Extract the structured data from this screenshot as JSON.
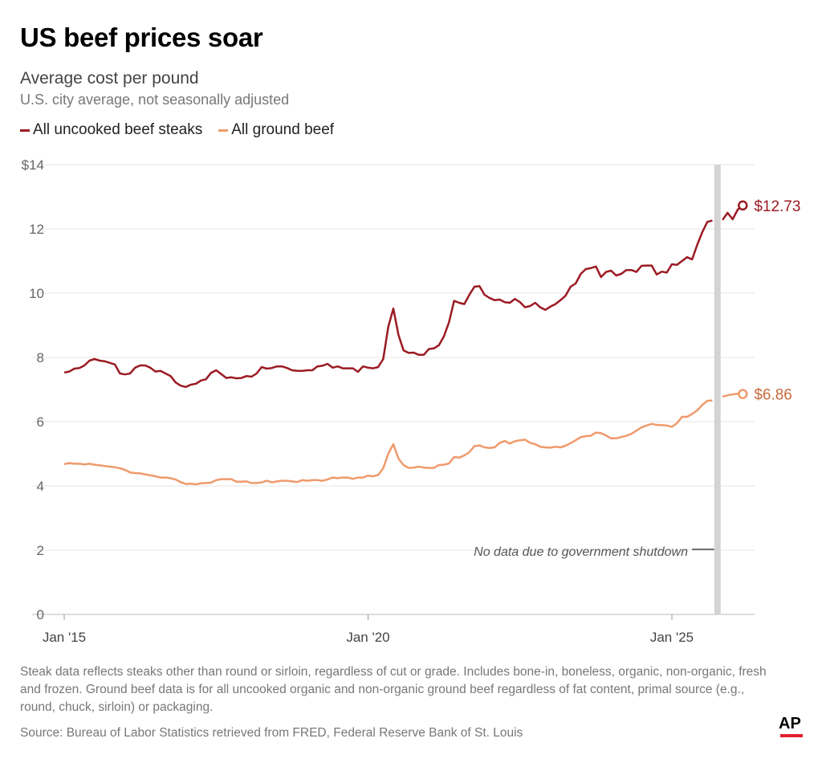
{
  "title": "US beef prices soar",
  "subtitle": "Average cost per pound",
  "note": "U.S. city average, not seasonally adjusted",
  "footnote": "Steak data reflects steaks other than round or sirloin, regardless of cut or grade. Includes bone-in, boneless, organic, non-organic, fresh and frozen. Ground beef data is for all uncooked organic and non-organic ground beef regardless of fat content, primal source (e.g., round, chuck, sirloin) or packaging.",
  "source": "Source: Bureau of Labor Statistics retrieved from FRED, Federal Reserve Bank of St. Louis",
  "logo": "AP",
  "chart_data": {
    "type": "line",
    "title": "US beef prices soar",
    "ylabel": "",
    "xlabel": "",
    "x_start": "2015-01",
    "x_end": "2026-03",
    "frequency": "monthly",
    "ylim": [
      0,
      14
    ],
    "y_ticks": [
      "$14",
      "12",
      "10",
      "8",
      "6",
      "4",
      "2",
      "0"
    ],
    "x_ticks": [
      "Jan '15",
      "Jan '20",
      "Jan '25"
    ],
    "grid": true,
    "legend_position": "top-left",
    "annotation": {
      "text": "No data due to government shutdown",
      "month": "2025-10"
    },
    "series": [
      {
        "name": "All uncooked beef steaks",
        "color": "#9b1b23",
        "end_label": "$12.73",
        "values": [
          7.53,
          7.56,
          7.65,
          7.67,
          7.75,
          7.9,
          7.95,
          7.9,
          7.88,
          7.83,
          7.78,
          7.5,
          7.47,
          7.5,
          7.68,
          7.75,
          7.75,
          7.68,
          7.56,
          7.58,
          7.5,
          7.42,
          7.22,
          7.12,
          7.08,
          7.15,
          7.18,
          7.28,
          7.32,
          7.52,
          7.6,
          7.48,
          7.36,
          7.38,
          7.35,
          7.36,
          7.42,
          7.4,
          7.5,
          7.7,
          7.65,
          7.67,
          7.72,
          7.72,
          7.67,
          7.6,
          7.58,
          7.58,
          7.6,
          7.6,
          7.72,
          7.74,
          7.8,
          7.68,
          7.72,
          7.66,
          7.66,
          7.66,
          7.55,
          7.72,
          7.68,
          7.66,
          7.7,
          7.95,
          8.95,
          9.52,
          8.7,
          8.22,
          8.14,
          8.15,
          8.08,
          8.08,
          8.26,
          8.28,
          8.38,
          8.66,
          9.1,
          9.76,
          9.7,
          9.66,
          9.95,
          10.2,
          10.22,
          9.95,
          9.85,
          9.78,
          9.8,
          9.72,
          9.7,
          9.82,
          9.72,
          9.56,
          9.6,
          9.7,
          9.56,
          9.48,
          9.58,
          9.66,
          9.78,
          9.92,
          10.2,
          10.3,
          10.6,
          10.75,
          10.78,
          10.83,
          10.5,
          10.66,
          10.7,
          10.55,
          10.6,
          10.72,
          10.72,
          10.66,
          10.85,
          10.86,
          10.86,
          10.58,
          10.67,
          10.64,
          10.9,
          10.88,
          11.0,
          11.12,
          11.05,
          11.5,
          11.9,
          12.22,
          12.26,
          null,
          12.28,
          12.5,
          12.3,
          12.6,
          12.73
        ]
      },
      {
        "name": "All ground beef",
        "color": "#ef9a6c",
        "end_label": "$6.86",
        "values": [
          4.68,
          4.71,
          4.69,
          4.69,
          4.67,
          4.69,
          4.66,
          4.64,
          4.62,
          4.6,
          4.58,
          4.55,
          4.5,
          4.42,
          4.4,
          4.39,
          4.36,
          4.33,
          4.3,
          4.26,
          4.26,
          4.24,
          4.2,
          4.12,
          4.06,
          4.07,
          4.05,
          4.08,
          4.09,
          4.1,
          4.18,
          4.21,
          4.21,
          4.21,
          4.13,
          4.13,
          4.14,
          4.09,
          4.09,
          4.11,
          4.16,
          4.11,
          4.14,
          4.16,
          4.16,
          4.14,
          4.12,
          4.18,
          4.16,
          4.18,
          4.18,
          4.16,
          4.2,
          4.26,
          4.24,
          4.26,
          4.26,
          4.22,
          4.26,
          4.26,
          4.32,
          4.3,
          4.34,
          4.55,
          5.0,
          5.3,
          4.85,
          4.65,
          4.56,
          4.57,
          4.6,
          4.57,
          4.56,
          4.56,
          4.65,
          4.66,
          4.7,
          4.9,
          4.88,
          4.95,
          5.05,
          5.24,
          5.26,
          5.2,
          5.18,
          5.2,
          5.34,
          5.4,
          5.32,
          5.39,
          5.42,
          5.44,
          5.34,
          5.3,
          5.22,
          5.2,
          5.19,
          5.22,
          5.2,
          5.25,
          5.33,
          5.42,
          5.52,
          5.55,
          5.56,
          5.66,
          5.64,
          5.57,
          5.48,
          5.48,
          5.52,
          5.56,
          5.62,
          5.72,
          5.82,
          5.88,
          5.93,
          5.9,
          5.89,
          5.88,
          5.84,
          5.95,
          6.15,
          6.15,
          6.24,
          6.35,
          6.52,
          6.65,
          6.66,
          null,
          6.78,
          6.82,
          6.85,
          6.87,
          6.86
        ]
      }
    ]
  }
}
